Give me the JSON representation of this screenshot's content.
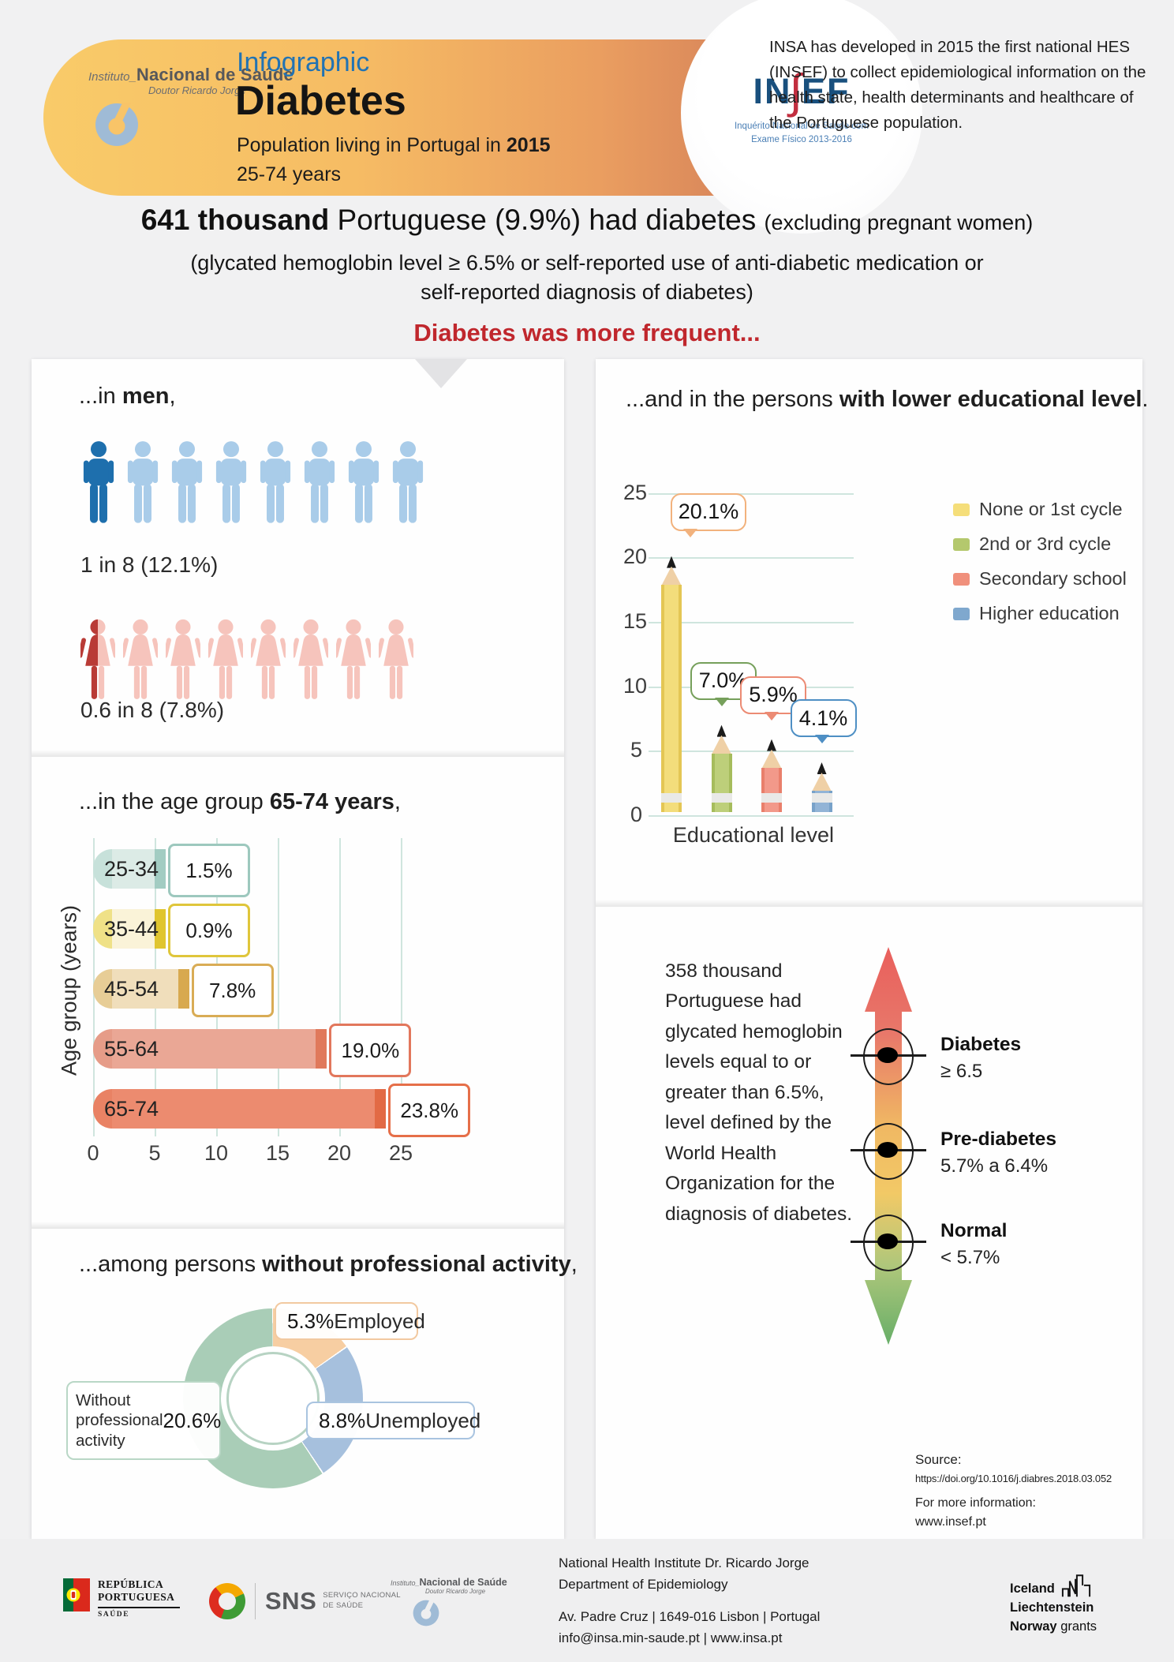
{
  "colors": {
    "accent_red": "#C0272D",
    "male_dark": "#1E6FAD",
    "male_light": "#A9CCE9",
    "female_light": "#F6C4BC",
    "female_dark": "#B93B36",
    "grid": "#CFE5DE",
    "wood": "#EFD0A6",
    "graphite": "#1B1B1B",
    "eraser": "#E9E9E7",
    "pencil": [
      {
        "body": "#F3DD7B",
        "edge": "#E4C654",
        "callout": "#F2B27D",
        "legend": "#F5DE7A"
      },
      {
        "body": "#BDCF7A",
        "edge": "#A6BC5C",
        "callout": "#76A05B",
        "legend": "#B4C86D"
      },
      {
        "body": "#F2998A",
        "edge": "#E97F6B",
        "callout": "#EC8B74",
        "legend": "#F0907C"
      },
      {
        "body": "#92B4D6",
        "edge": "#78A2C9",
        "callout": "#4E8FC4",
        "legend": "#7FA8CE"
      }
    ],
    "age_bars": [
      {
        "left": "#C7E1DA",
        "body": "#DCEBE6",
        "cap": "#A2CCC2",
        "border": "#9DC8BE"
      },
      {
        "left": "#EFE187",
        "body": "#FAF3D8",
        "cap": "#E0C52F",
        "border": "#DFC63B"
      },
      {
        "left": "#E7CD96",
        "body": "#F0DEBB",
        "cap": "#D8A94F",
        "border": "#D9AC55"
      },
      {
        "left": "#E69C88",
        "body": "#EAA795",
        "cap": "#E0795B",
        "border": "#E2775C"
      },
      {
        "left": "#E98264",
        "body": "#EC8B6F",
        "cap": "#E26A45",
        "border": "#E66F49"
      }
    ],
    "donut": [
      "#F7CEA2",
      "#A6C0DD",
      "#A9CDB7"
    ],
    "donut_borders": [
      "#F2C9A0",
      "#A9C4E0",
      "#B9D7C6"
    ],
    "arrow_gradient": [
      "#E95F5C",
      "#F0B863",
      "#F2C966",
      "#77B873"
    ]
  },
  "header": {
    "insa_logo": {
      "prefix": "Instituto_",
      "name": "Nacional de Saúde",
      "sub": "Doutor Ricardo Jorge"
    },
    "infographic_label": "Infographic",
    "title": "Diabetes",
    "subtitle_prefix": "Population living in Portugal in ",
    "subtitle_year": "2015",
    "age_range": "25-74 years",
    "insef": {
      "left": "IN",
      "integral": "∫",
      "right": "EF",
      "tagline1": "Inquérito Nacional de Saúde com",
      "tagline2": "Exame Físico 2013-2016"
    },
    "intro": "INSA has developed in 2015 the first national HES (INSEF) to collect epidemiological information on the health state, health determinants and healthcare of the Portuguese population."
  },
  "headline": {
    "main_bold": "641 thousand",
    "main_rest": " Portuguese (9.9%) had diabetes ",
    "main_small": "(excluding pregnant women)",
    "sub1": "(glycated hemoglobin level ≥ 6.5% or self-reported use of anti-diabetic medication or",
    "sub2": "self-reported diagnosis of diabetes)",
    "banner": "Diabetes was more frequent..."
  },
  "sections": {
    "men": {
      "title_prefix": "...in ",
      "title_bold": "men",
      "title_suffix": ","
    },
    "education": {
      "title_prefix": "...and in the persons ",
      "title_bold": "with lower educational level",
      "title_suffix": "."
    },
    "age": {
      "title_prefix": "...in the age group ",
      "title_bold": "65-74 years",
      "title_suffix": ","
    },
    "activity": {
      "title_prefix": "...among persons ",
      "title_bold": "without professional activity",
      "title_suffix": ","
    },
    "hb": {
      "paragraph": "358 thousand Portuguese had glycated hemoglobin levels equal to or greater than 6.5%, level defined by the World Health Organization for the diagnosis of diabetes."
    }
  },
  "source": {
    "label": "Source:",
    "doi": "https://doi.org/10.1016/j.diabres.2018.03.052",
    "more_label": "For more information:",
    "url": "www.insef.pt"
  },
  "footer": {
    "republica": {
      "line1": "REPÚBLICA",
      "line2": "PORTUGUESA",
      "line3": "SAÚDE"
    },
    "sns": {
      "name": "SNS",
      "tag1": "SERVIÇO NACIONAL",
      "tag2": "DE SAÚDE"
    },
    "insa": {
      "prefix": "Instituto_",
      "name": "Nacional de Saúde",
      "sub": "Doutor Ricardo Jorge"
    },
    "contact1": "National Health Institute Dr. Ricardo Jorge",
    "contact2": "Department of Epidemiology",
    "contact3": "Av. Padre Cruz  |  1649-016  Lisbon  |  Portugal",
    "contact4": "info@insa.min-saude.pt  |  www.insa.pt",
    "grants": {
      "l1": "Iceland",
      "l2": "Liechtenstein",
      "l3_bold": "Norway",
      "l3_rest": " grants"
    }
  },
  "chart_data": {
    "gender_pictogram": {
      "type": "pictogram",
      "male": {
        "count": 8,
        "highlighted": 1,
        "stat": "1 in 8 (12.1%)"
      },
      "female": {
        "count": 8,
        "highlighted": 0.6,
        "stat": "0.6 in 8 (7.8%)"
      }
    },
    "education": {
      "type": "bar",
      "title": "...and in the persons with lower educational level.",
      "categories": [
        "None or 1st cycle",
        "2nd or 3rd cycle",
        "Secondary school",
        "Higher education"
      ],
      "values": [
        20.1,
        7.0,
        5.9,
        4.1
      ],
      "value_labels": [
        "20.1%",
        "7.0%",
        "5.9%",
        "4.1%"
      ],
      "xlabel": "Educational level",
      "ylim": [
        0,
        25
      ],
      "yticks": [
        0,
        5,
        10,
        15,
        20,
        25
      ],
      "legend_position": "right",
      "grid": true
    },
    "age": {
      "type": "bar",
      "orientation": "horizontal",
      "title": "...in the age group 65-74 years,",
      "categories": [
        "25-34",
        "35-44",
        "45-54",
        "55-64",
        "65-74"
      ],
      "values": [
        1.5,
        0.9,
        7.8,
        19.0,
        23.8
      ],
      "value_labels": [
        "1.5%",
        "0.9%",
        "7.8%",
        "19.0%",
        "23.8%"
      ],
      "ylabel": "Age group (years)",
      "xlim": [
        0,
        25
      ],
      "xticks": [
        0,
        5,
        10,
        15,
        20,
        25
      ],
      "grid": true
    },
    "activity": {
      "type": "pie",
      "donut": true,
      "title": "...among persons without professional activity,",
      "categories": [
        "Employed",
        "Unemployed",
        "Without professional activity"
      ],
      "values": [
        5.3,
        8.8,
        20.6
      ],
      "value_labels": [
        "5.3%",
        "8.8%",
        "20.6%"
      ]
    },
    "hb_scale": {
      "type": "scale",
      "items": [
        {
          "label": "Diabetes",
          "range": "≥ 6.5"
        },
        {
          "label": "Pre-diabetes",
          "range": "5.7% a 6.4%"
        },
        {
          "label": "Normal",
          "range": "< 5.7%"
        }
      ]
    }
  }
}
